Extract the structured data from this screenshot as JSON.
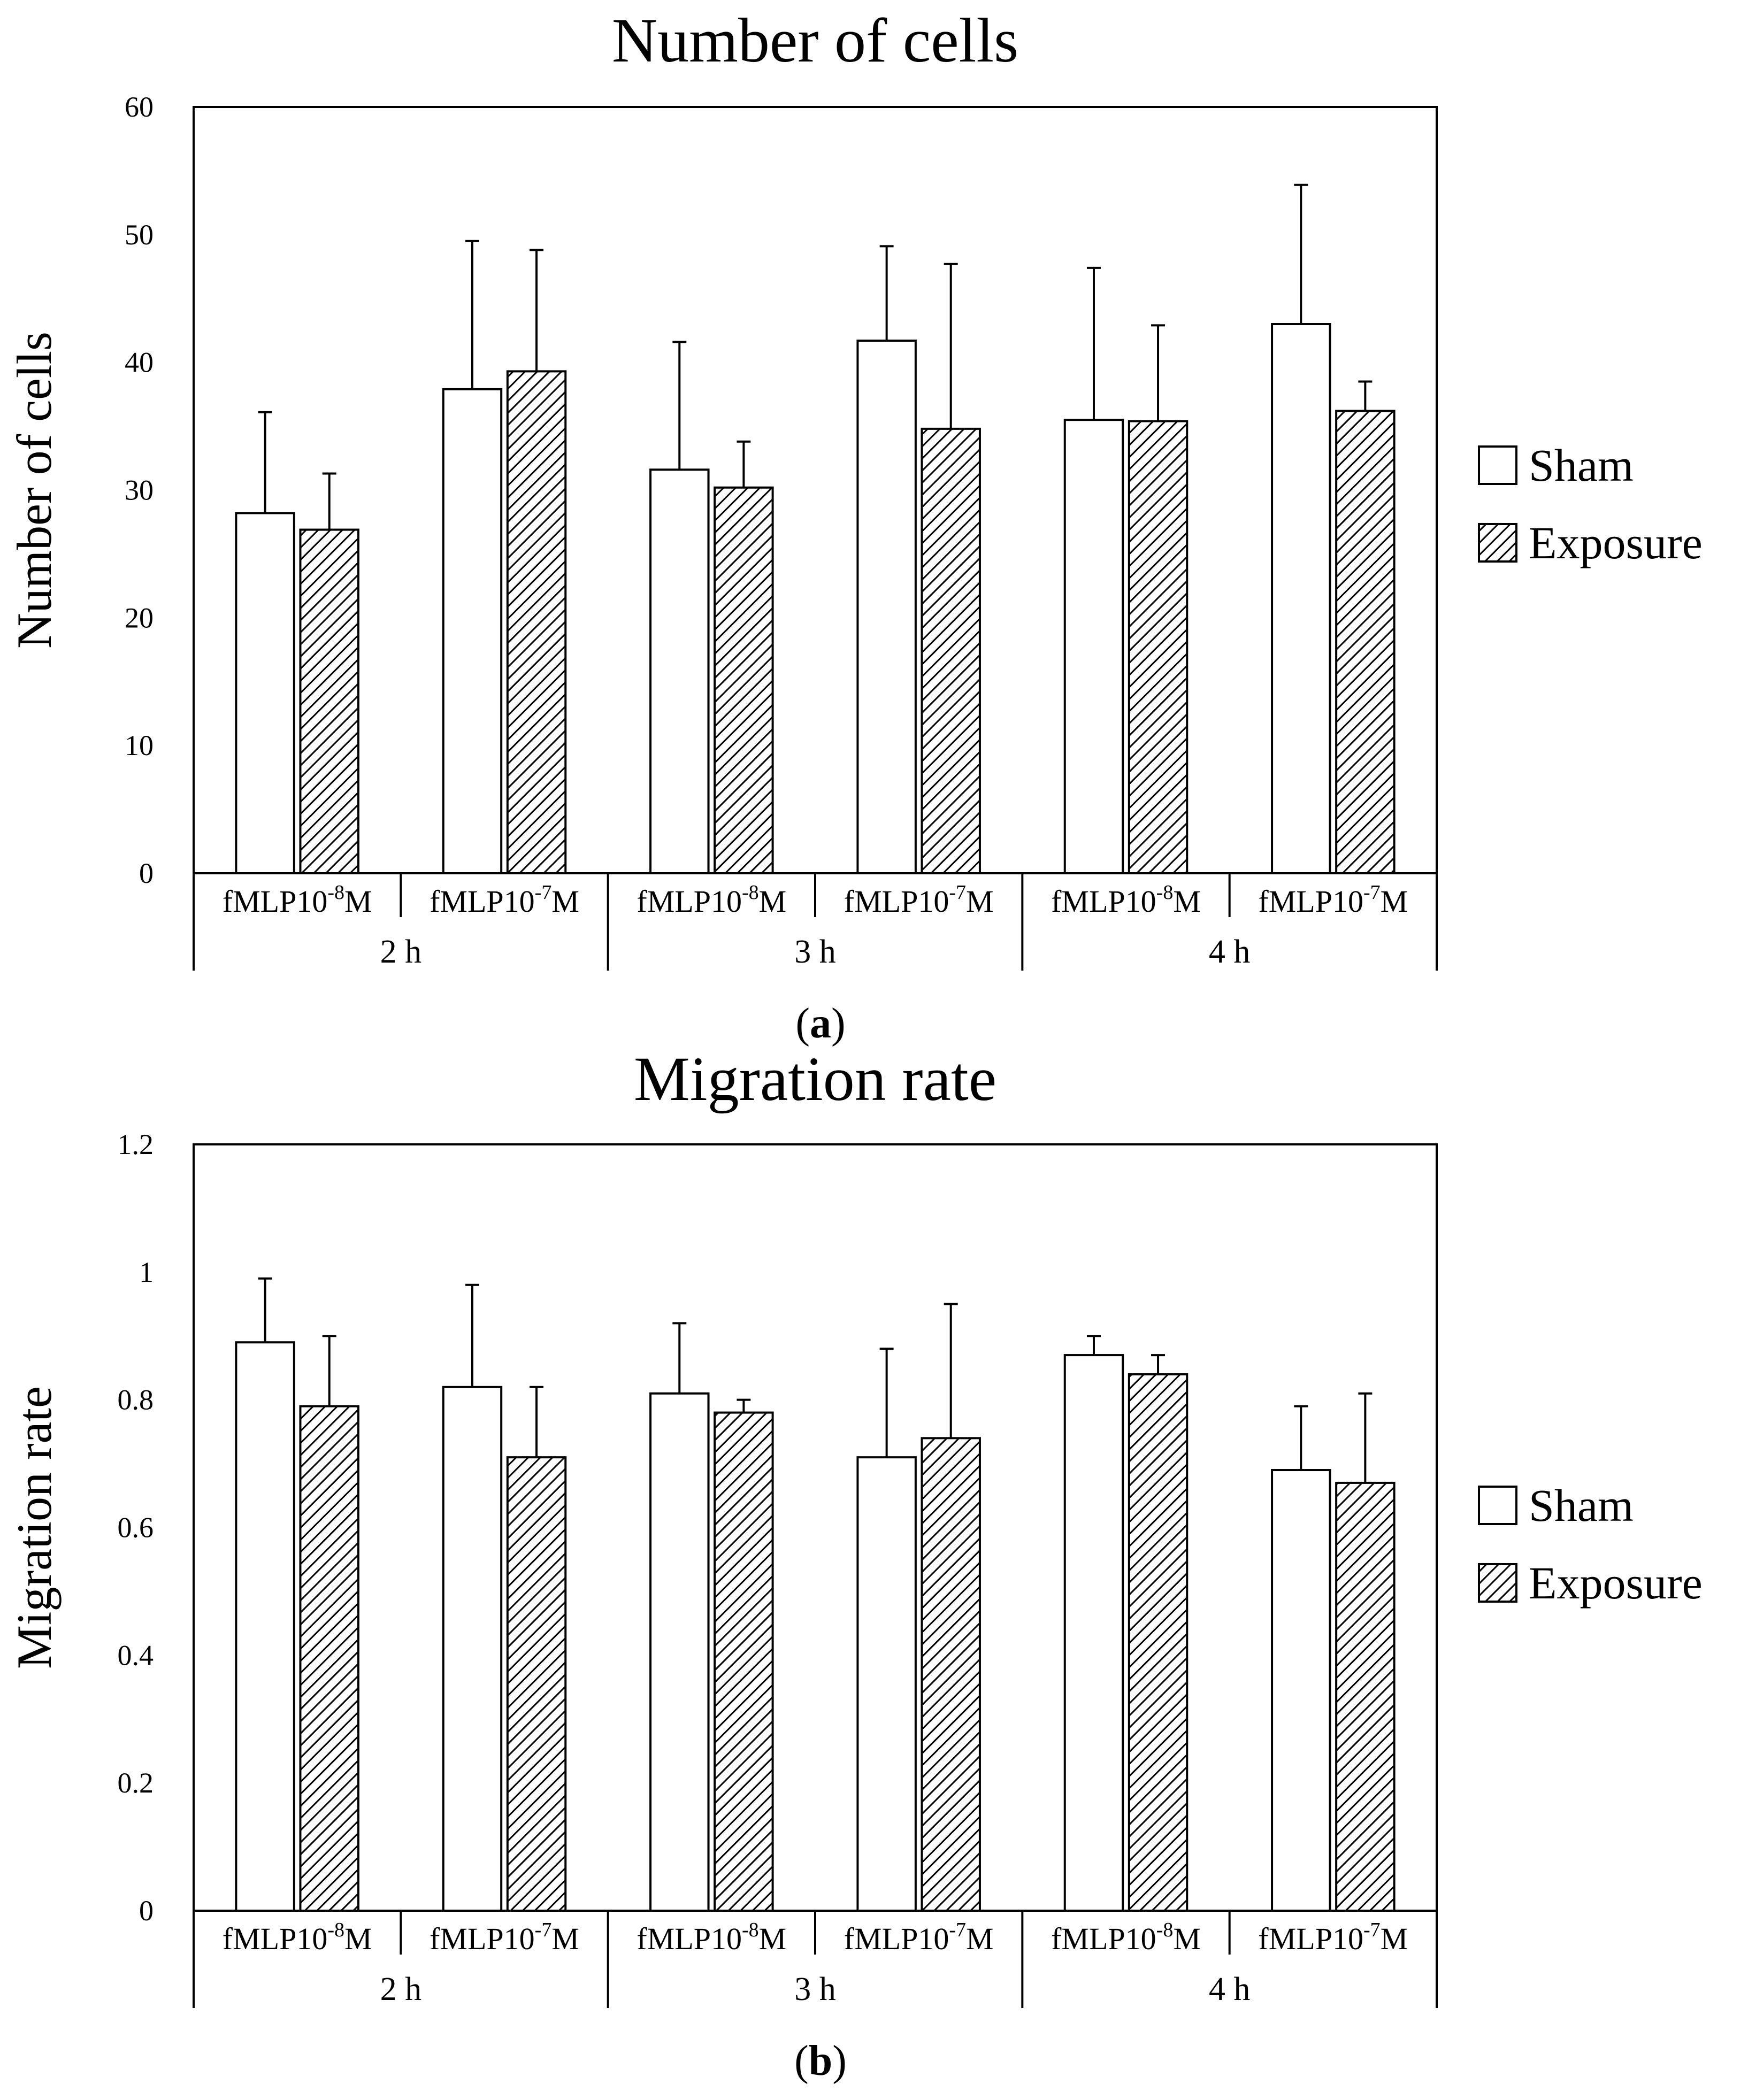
{
  "chart_data": [
    {
      "type": "bar",
      "title": "Number of cells",
      "ylabel": "Number of cells",
      "xlabel": "",
      "panel_label": "a",
      "ylim": [
        0,
        60
      ],
      "yticks": [
        0,
        10,
        20,
        30,
        40,
        50,
        60
      ],
      "ytick_labels": [
        "0",
        "10",
        "20",
        "30",
        "40",
        "50",
        "60"
      ],
      "groups": [
        "2 h",
        "3 h",
        "4 h"
      ],
      "categories": [
        {
          "base": "fMLP10",
          "exp": "-8",
          "unit": "M"
        },
        {
          "base": "fMLP10",
          "exp": "-7",
          "unit": "M"
        },
        {
          "base": "fMLP10",
          "exp": "-8",
          "unit": "M"
        },
        {
          "base": "fMLP10",
          "exp": "-7",
          "unit": "M"
        },
        {
          "base": "fMLP10",
          "exp": "-8",
          "unit": "M"
        },
        {
          "base": "fMLP10",
          "exp": "-7",
          "unit": "M"
        }
      ],
      "series": [
        {
          "name": "Sham",
          "fill": "white",
          "values": [
            28.2,
            37.9,
            31.6,
            41.7,
            35.5,
            43.0
          ],
          "errors": [
            7.9,
            11.6,
            10.0,
            7.4,
            11.9,
            10.9
          ]
        },
        {
          "name": "Exposure",
          "fill": "hatch",
          "values": [
            26.9,
            39.3,
            30.2,
            34.8,
            35.4,
            36.2
          ],
          "errors": [
            4.4,
            9.5,
            3.6,
            12.9,
            7.5,
            2.3
          ]
        }
      ],
      "legend": [
        "Sham",
        "Exposure"
      ],
      "legend_position": "right"
    },
    {
      "type": "bar",
      "title": "Migration rate",
      "ylabel": "Migration rate",
      "xlabel": "",
      "panel_label": "b",
      "ylim": [
        0,
        1.2
      ],
      "yticks": [
        0,
        0.2,
        0.4,
        0.6,
        0.8,
        1.0,
        1.2
      ],
      "ytick_labels": [
        "0",
        "0.2",
        "0.4",
        "0.6",
        "0.8",
        "1",
        "1.2"
      ],
      "groups": [
        "2 h",
        "3 h",
        "4 h"
      ],
      "categories": [
        {
          "base": "fMLP10",
          "exp": "-8",
          "unit": "M"
        },
        {
          "base": "fMLP10",
          "exp": "-7",
          "unit": "M"
        },
        {
          "base": "fMLP10",
          "exp": "-8",
          "unit": "M"
        },
        {
          "base": "fMLP10",
          "exp": "-7",
          "unit": "M"
        },
        {
          "base": "fMLP10",
          "exp": "-8",
          "unit": "M"
        },
        {
          "base": "fMLP10",
          "exp": "-7",
          "unit": "M"
        }
      ],
      "series": [
        {
          "name": "Sham",
          "fill": "white",
          "values": [
            0.89,
            0.82,
            0.81,
            0.71,
            0.87,
            0.69
          ],
          "errors": [
            0.1,
            0.16,
            0.11,
            0.17,
            0.03,
            0.1
          ]
        },
        {
          "name": "Exposure",
          "fill": "hatch",
          "values": [
            0.79,
            0.71,
            0.78,
            0.74,
            0.84,
            0.67
          ],
          "errors": [
            0.11,
            0.11,
            0.02,
            0.21,
            0.03,
            0.14
          ]
        }
      ],
      "legend": [
        "Sham",
        "Exposure"
      ],
      "legend_position": "right"
    }
  ]
}
